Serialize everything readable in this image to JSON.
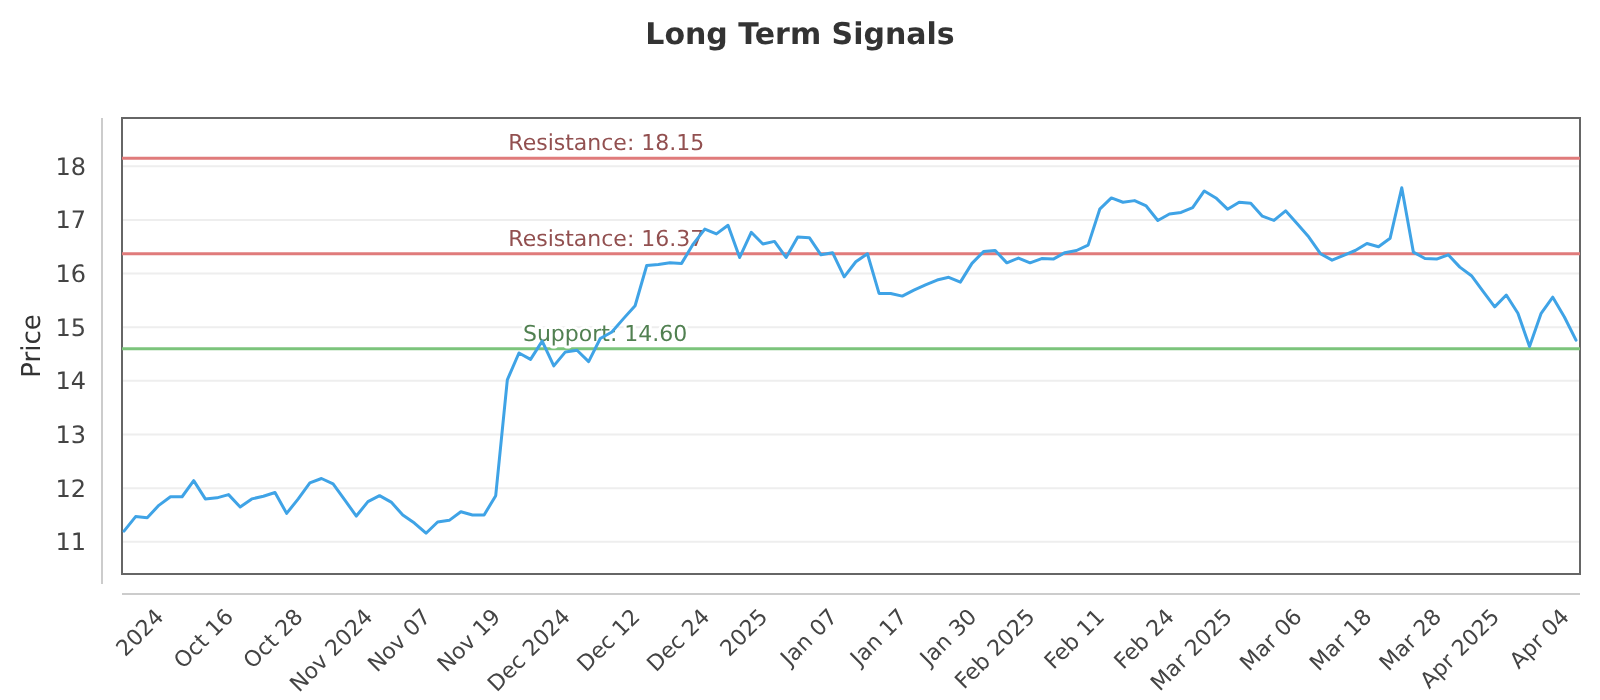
{
  "chart_data": {
    "type": "line",
    "title": "Long Term Signals",
    "ylabel": "Price",
    "categories": [
      null,
      null,
      null,
      "2024",
      null,
      null,
      null,
      null,
      null,
      "Oct 16",
      null,
      null,
      null,
      null,
      null,
      "Oct 28",
      null,
      null,
      null,
      null,
      null,
      "Nov 2024",
      null,
      null,
      null,
      null,
      "Nov 07",
      null,
      null,
      null,
      null,
      null,
      "Nov 19",
      null,
      null,
      null,
      null,
      null,
      "Dec 2024",
      null,
      null,
      null,
      null,
      null,
      "Dec 12",
      null,
      null,
      null,
      null,
      null,
      "Dec 24",
      null,
      null,
      null,
      null,
      "2025",
      null,
      null,
      null,
      null,
      null,
      "Jan 07",
      null,
      null,
      null,
      null,
      null,
      "Jan 17",
      null,
      null,
      null,
      null,
      null,
      "Jan 30",
      null,
      null,
      null,
      null,
      "Feb 2025",
      null,
      null,
      null,
      null,
      null,
      "Feb 11",
      null,
      null,
      null,
      null,
      null,
      "Feb 24",
      null,
      null,
      null,
      null,
      "Mar 2025",
      null,
      null,
      null,
      null,
      null,
      "Mar 06",
      null,
      null,
      null,
      null,
      null,
      "Mar 18",
      null,
      null,
      null,
      null,
      null,
      "Mar 28",
      null,
      null,
      null,
      null,
      "Apr 2025",
      null,
      null,
      null,
      null,
      null,
      "Apr 04",
      null
    ],
    "series": [
      {
        "color": "#3fa3e6",
        "values": [
          11.2,
          11.47,
          11.45,
          11.68,
          11.84,
          11.84,
          12.14,
          11.8,
          11.82,
          11.88,
          11.65,
          11.8,
          11.85,
          11.92,
          11.53,
          11.8,
          12.1,
          12.18,
          12.08,
          11.78,
          11.48,
          11.75,
          11.86,
          11.74,
          11.5,
          11.35,
          11.16,
          11.37,
          11.4,
          11.56,
          11.5,
          11.5,
          11.86,
          14.02,
          14.52,
          14.4,
          14.74,
          14.28,
          14.54,
          14.57,
          14.36,
          14.79,
          14.91,
          15.16,
          15.4,
          16.15,
          16.17,
          16.2,
          16.19,
          16.55,
          16.83,
          16.74,
          16.9,
          16.3,
          16.77,
          16.55,
          16.6,
          16.3,
          16.68,
          16.67,
          16.35,
          16.39,
          15.94,
          16.22,
          16.37,
          15.63,
          15.63,
          15.58,
          15.69,
          15.79,
          15.88,
          15.93,
          15.84,
          16.19,
          16.41,
          16.43,
          16.2,
          16.29,
          16.2,
          16.28,
          16.27,
          16.39,
          16.43,
          16.53,
          17.2,
          17.41,
          17.33,
          17.36,
          17.26,
          16.99,
          17.11,
          17.14,
          17.23,
          17.54,
          17.41,
          17.2,
          17.33,
          17.31,
          17.07,
          16.99,
          17.17,
          16.93,
          16.68,
          16.37,
          16.25,
          16.34,
          16.43,
          16.56,
          16.5,
          16.66,
          17.6,
          16.4,
          16.28,
          16.27,
          16.35,
          16.12,
          15.96,
          15.67,
          15.38,
          15.6,
          15.26,
          14.64,
          15.26,
          15.56,
          15.19,
          14.76
        ]
      }
    ],
    "ylim": [
      10.4,
      18.9
    ],
    "yticks": [
      11,
      12,
      13,
      14,
      15,
      16,
      17,
      18
    ],
    "grid": "y",
    "marker": "none",
    "line_style": "solid",
    "ref_lines": [
      {
        "axis": "y",
        "value": 18.15,
        "label": "Resistance: 18.15",
        "color": "#e07b7b"
      },
      {
        "axis": "y",
        "value": 16.37,
        "label": "Resistance: 16.37",
        "color": "#e07b7b"
      },
      {
        "axis": "y",
        "value": 14.6,
        "label": "Support: 14.60",
        "color": "#7cc47c"
      }
    ]
  }
}
